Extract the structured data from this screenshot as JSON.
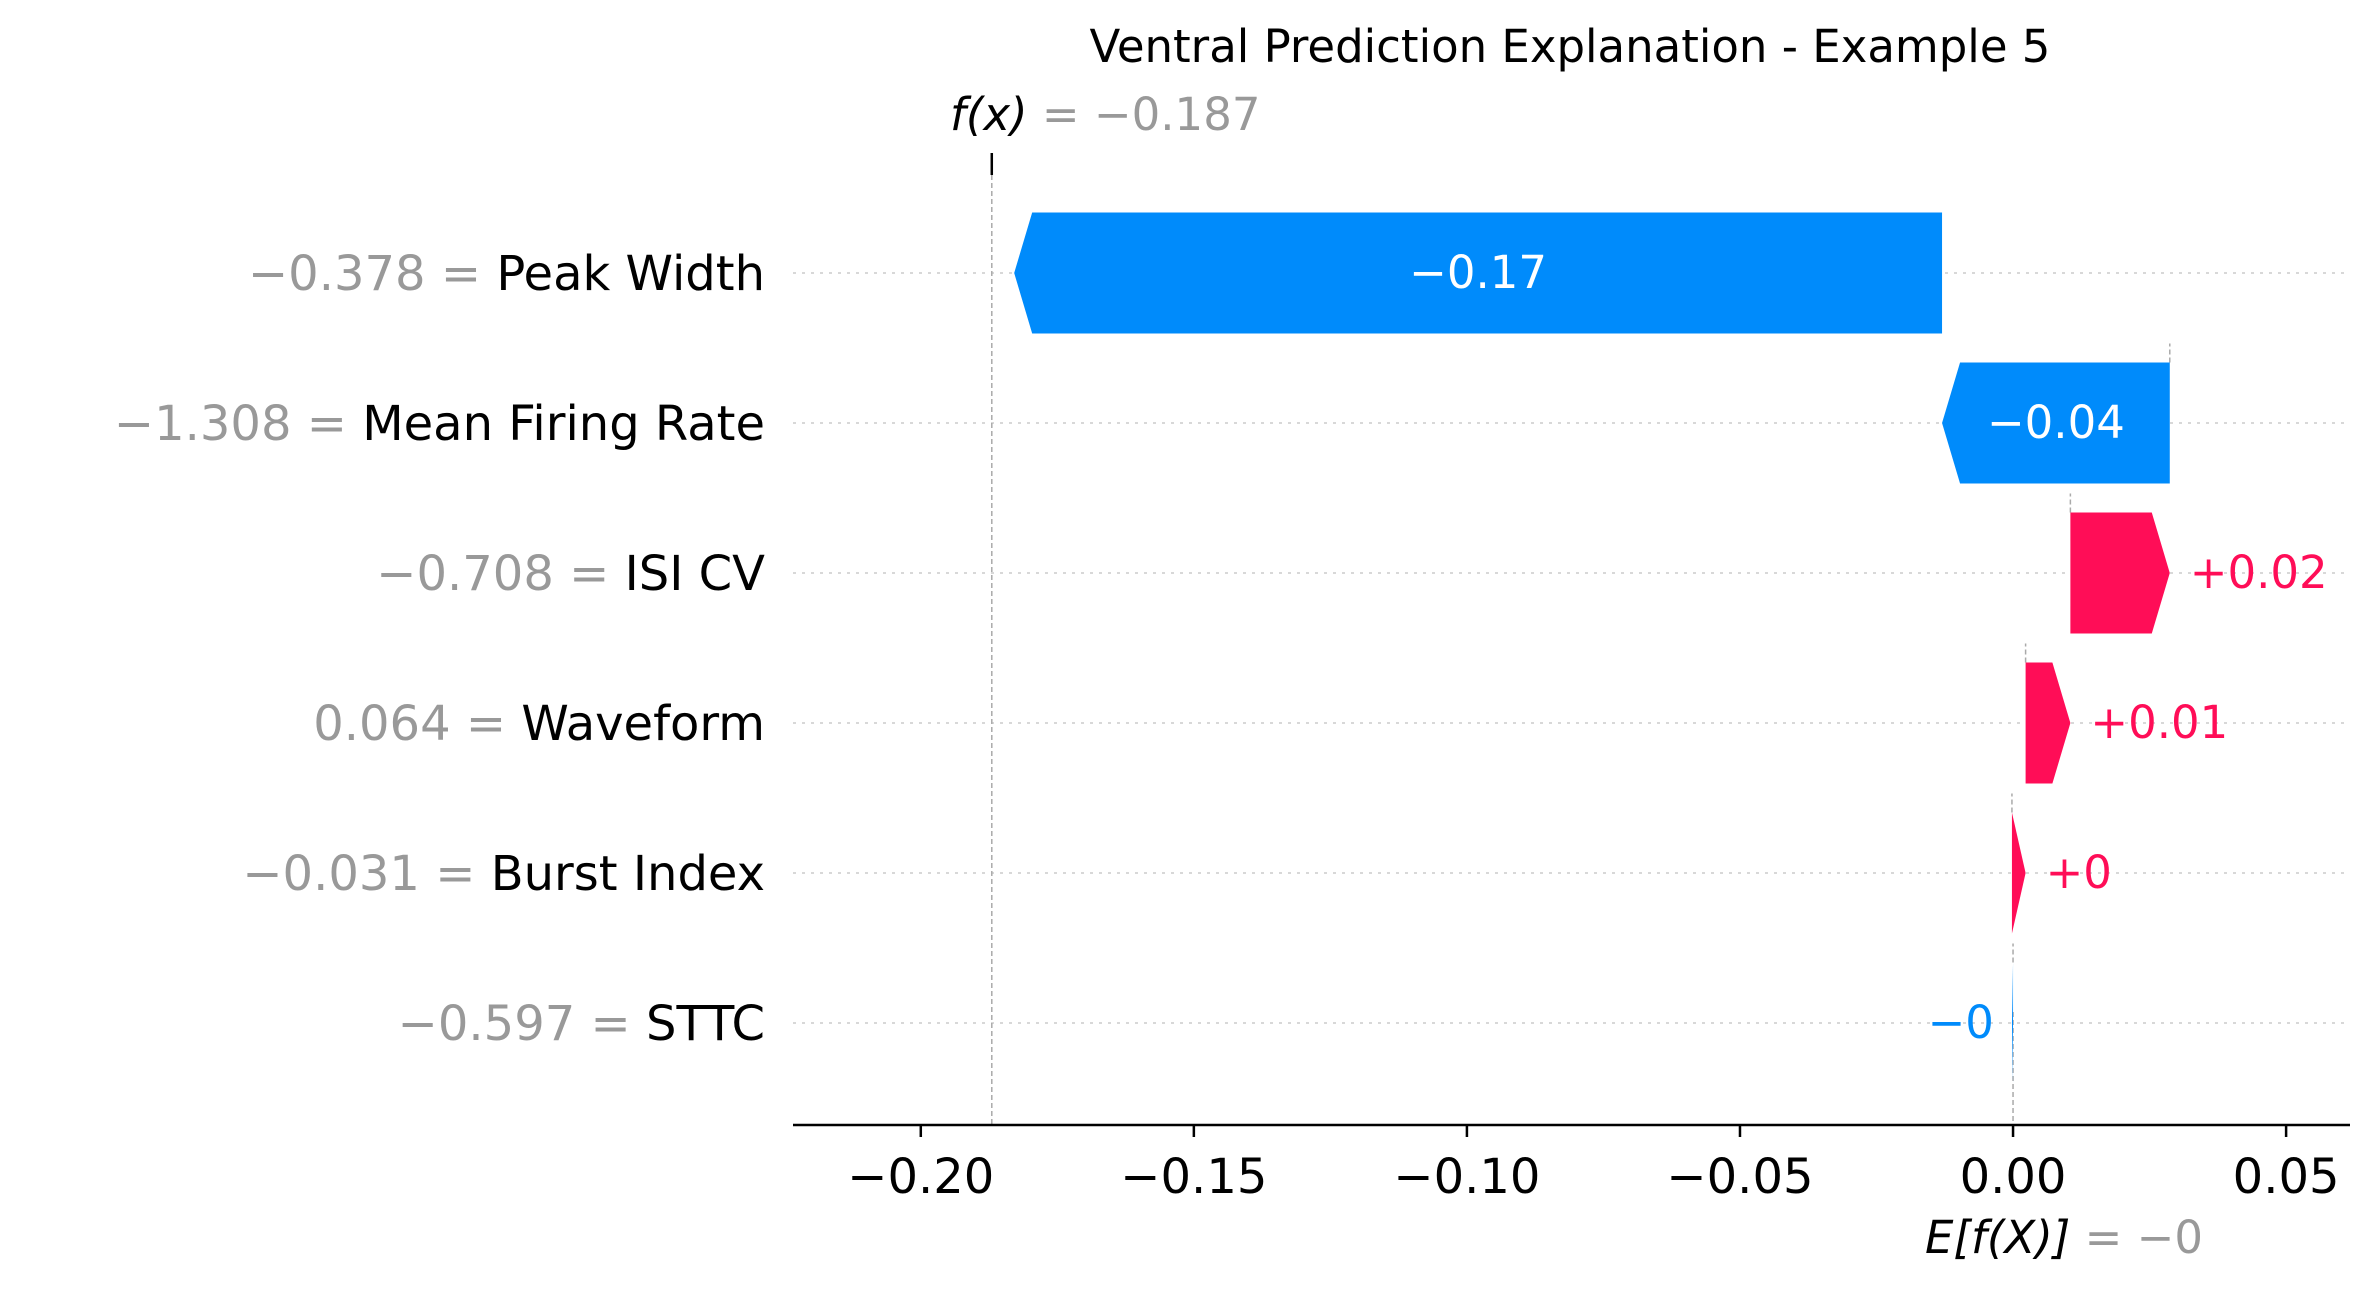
{
  "chart_data": {
    "type": "waterfall",
    "title": "Ventral Prediction Explanation - Example 5",
    "fx_label": {
      "prefix": "f(x)",
      "sep": " = ",
      "value": "−0.187"
    },
    "ex_label": {
      "prefix": "E[f(X)]",
      "sep": " = ",
      "value": "−0"
    },
    "fx_value": -0.187,
    "base_value": 0.0,
    "xlim": [
      -0.2234,
      0.0617
    ],
    "xticks": [
      -0.2,
      -0.15,
      -0.1,
      -0.05,
      0.0,
      0.05
    ],
    "xtick_labels": [
      "−0.20",
      "−0.15",
      "−0.10",
      "−0.05",
      "0.00",
      "0.05"
    ],
    "grid": true,
    "features": [
      {
        "value_label": "−0.378",
        "sep": " = ",
        "name": "Peak Width",
        "contribution": -0.1699,
        "bar_label": "−0.17"
      },
      {
        "value_label": "−1.308",
        "sep": " = ",
        "name": "Mean Firing Rate",
        "contribution": -0.0417,
        "bar_label": "−0.04"
      },
      {
        "value_label": "−0.708",
        "sep": " = ",
        "name": "ISI CV",
        "contribution": 0.0182,
        "bar_label": "+0.02"
      },
      {
        "value_label": "0.064",
        "sep": " = ",
        "name": "Waveform",
        "contribution": 0.0082,
        "bar_label": "+0.01"
      },
      {
        "value_label": "−0.031",
        "sep": " = ",
        "name": "Burst Index",
        "contribution": 0.0025,
        "bar_label": "+0"
      },
      {
        "value_label": "−0.597",
        "sep": " = ",
        "name": "STTC",
        "contribution": -0.0002,
        "bar_label": "−0"
      }
    ],
    "colors": {
      "positive": "#ff0d57",
      "negative": "#008bfb",
      "muted": "#999999",
      "text": "#000000"
    }
  }
}
